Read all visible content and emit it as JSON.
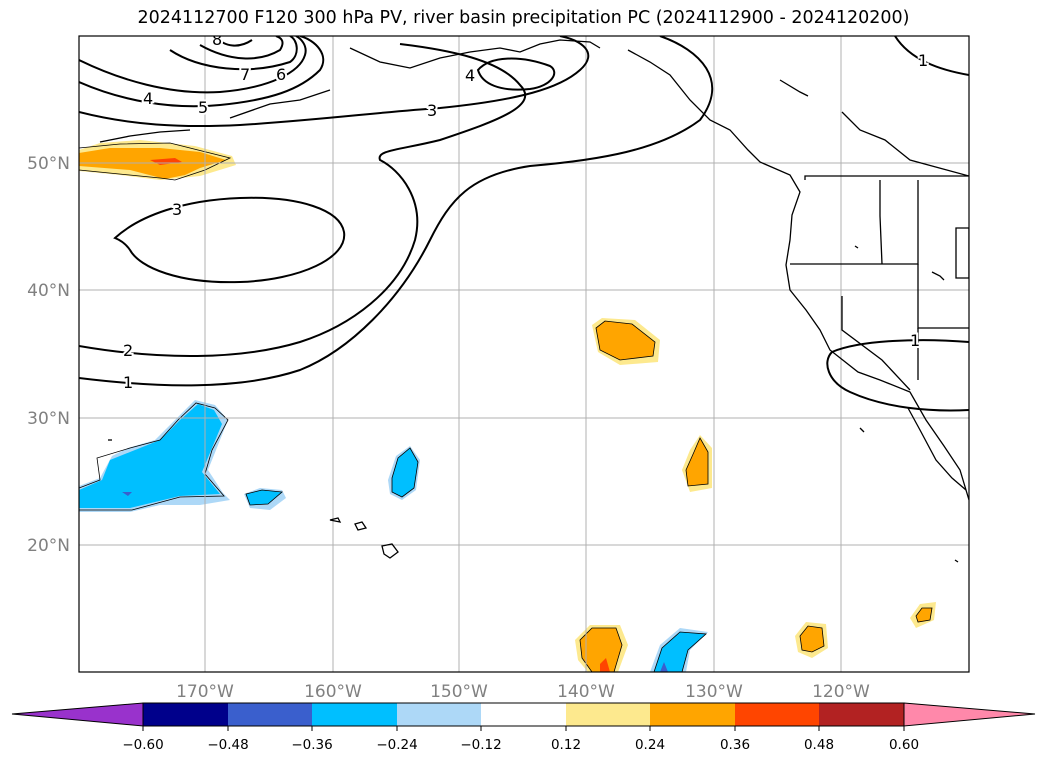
{
  "title": "2024112700 F120 300 hPa PV, river basin precipitation PC (2024112900 - 2024120200)",
  "map": {
    "lat_labels": [
      "50°N",
      "40°N",
      "30°N",
      "20°N"
    ],
    "lon_labels": [
      "170°W",
      "160°W",
      "150°W",
      "140°W",
      "130°W",
      "120°W"
    ],
    "pv_contour_labels": [
      "1",
      "2",
      "3",
      "3",
      "4",
      "4",
      "5",
      "6",
      "7",
      "8",
      "1",
      "1"
    ],
    "grid": true,
    "projection": "PlateCarree (approx. 180°W–110°W, 10°N–60°N)"
  },
  "colorbar": {
    "ticks": [
      "−0.60",
      "−0.48",
      "−0.36",
      "−0.24",
      "−0.12",
      "0.12",
      "0.24",
      "0.36",
      "0.48",
      "0.60"
    ],
    "colors": [
      "#9932cc",
      "#00008b",
      "#3a5fcd",
      "#00bfff",
      "#add8f7",
      "#ffffff",
      "#fde98e",
      "#ffa500",
      "#ff4500",
      "#b22222",
      "#ff88aa"
    ],
    "extend": "both"
  }
}
